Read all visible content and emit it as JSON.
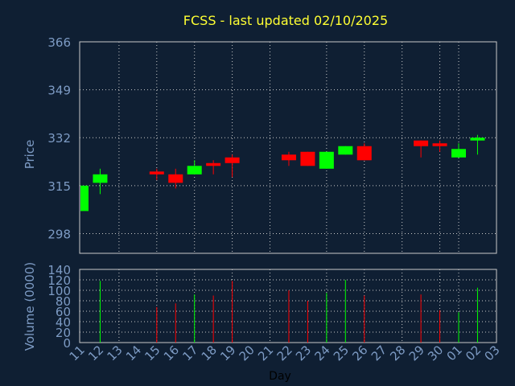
{
  "chart_data": {
    "type": "candlestick",
    "title": "FCSS - last updated 02/10/2025",
    "price_panel": {
      "ylabel": "Price",
      "ylim": [
        291,
        366
      ],
      "yticks": [
        298,
        315,
        332,
        349,
        366
      ]
    },
    "volume_panel": {
      "ylabel": "Volume (0000)",
      "ylim": [
        0,
        140
      ],
      "yticks": [
        0,
        20,
        40,
        60,
        80,
        100,
        120,
        140
      ]
    },
    "xlabel": "Day",
    "categories": [
      "11",
      "12",
      "13",
      "14",
      "15",
      "16",
      "17",
      "18",
      "19",
      "20",
      "21",
      "22",
      "23",
      "24",
      "25",
      "26",
      "27",
      "28",
      "29",
      "30",
      "01",
      "02",
      "03"
    ],
    "candles": [
      {
        "day": "11",
        "open": 306,
        "close": 315,
        "high": 315,
        "low": 306,
        "volume": null
      },
      {
        "day": "12",
        "open": 316,
        "close": 319,
        "high": 321,
        "low": 312,
        "volume": 118
      },
      {
        "day": "15",
        "open": 320,
        "close": 319,
        "high": 321,
        "low": 317,
        "volume": 68
      },
      {
        "day": "16",
        "open": 319,
        "close": 316,
        "high": 321,
        "low": 314,
        "volume": 75
      },
      {
        "day": "17",
        "open": 319,
        "close": 322,
        "high": 324,
        "low": 319,
        "volume": 92
      },
      {
        "day": "18",
        "open": 323,
        "close": 322,
        "high": 324,
        "low": 319,
        "volume": 90
      },
      {
        "day": "19",
        "open": 325,
        "close": 323,
        "high": 326,
        "low": 318,
        "volume": 118
      },
      {
        "day": "22",
        "open": 326,
        "close": 324,
        "high": 327,
        "low": 322,
        "volume": 100
      },
      {
        "day": "23",
        "open": 327,
        "close": 322,
        "high": 327,
        "low": 322,
        "volume": 80
      },
      {
        "day": "24",
        "open": 321,
        "close": 327,
        "high": 327,
        "low": 321,
        "volume": 95
      },
      {
        "day": "25",
        "open": 326,
        "close": 329,
        "high": 329,
        "low": 326,
        "volume": 120
      },
      {
        "day": "26",
        "open": 329,
        "close": 324,
        "high": 330,
        "low": 324,
        "volume": 90
      },
      {
        "day": "29",
        "open": 331,
        "close": 329,
        "high": 331,
        "low": 325,
        "volume": 92
      },
      {
        "day": "30",
        "open": 330,
        "close": 329,
        "high": 331,
        "low": 327,
        "volume": 62
      },
      {
        "day": "01",
        "open": 325,
        "close": 328,
        "high": 330,
        "low": 325,
        "volume": 58
      },
      {
        "day": "02",
        "open": 331,
        "close": 332,
        "high": 333,
        "low": 326,
        "volume": 105
      }
    ]
  },
  "colors": {
    "background": "#0f1f33",
    "up": "#00ff00",
    "down": "#ff0000",
    "title": "#ffff33",
    "axis_text": "#7d9bc4",
    "grid": "#c8c8c8"
  }
}
